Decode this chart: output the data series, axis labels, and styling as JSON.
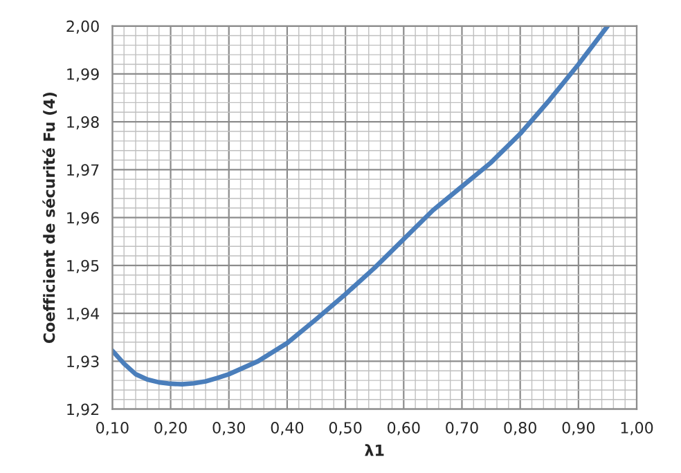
{
  "chart_data": {
    "type": "line",
    "xlabel": "λ1",
    "ylabel": "Coefficient de sécurité Fu (4)",
    "x": [
      0.1,
      0.12,
      0.14,
      0.16,
      0.18,
      0.2,
      0.22,
      0.24,
      0.26,
      0.28,
      0.3,
      0.35,
      0.4,
      0.45,
      0.5,
      0.55,
      0.6,
      0.65,
      0.67,
      0.7,
      0.75,
      0.8,
      0.85,
      0.9,
      0.95
    ],
    "series": [
      {
        "color": "#4a7ebb",
        "values": [
          1.9322,
          1.9295,
          1.9273,
          1.9262,
          1.9256,
          1.9253,
          1.9252,
          1.9254,
          1.9258,
          1.9265,
          1.9273,
          1.93,
          1.9338,
          1.9388,
          1.944,
          1.9495,
          1.9555,
          1.9615,
          1.9635,
          1.9665,
          1.9715,
          1.9775,
          1.9845,
          1.992,
          2.0
        ]
      }
    ],
    "xlim": [
      0.1,
      1.0
    ],
    "ylim": [
      1.92,
      2.0
    ],
    "xticks": [
      {
        "value": 0.1,
        "label": "0,10"
      },
      {
        "value": 0.2,
        "label": "0,20"
      },
      {
        "value": 0.3,
        "label": "0,30"
      },
      {
        "value": 0.4,
        "label": "0,40"
      },
      {
        "value": 0.5,
        "label": "0,50"
      },
      {
        "value": 0.6,
        "label": "0,60"
      },
      {
        "value": 0.7,
        "label": "0,70"
      },
      {
        "value": 0.8,
        "label": "0,80"
      },
      {
        "value": 0.9,
        "label": "0,90"
      },
      {
        "value": 1.0,
        "label": "1,00"
      }
    ],
    "yticks": [
      {
        "value": 1.92,
        "label": "1,92"
      },
      {
        "value": 1.93,
        "label": "1,93"
      },
      {
        "value": 1.94,
        "label": "1,94"
      },
      {
        "value": 1.95,
        "label": "1,95"
      },
      {
        "value": 1.96,
        "label": "1,96"
      },
      {
        "value": 1.97,
        "label": "1,97"
      },
      {
        "value": 1.98,
        "label": "1,98"
      },
      {
        "value": 1.99,
        "label": "1,99"
      },
      {
        "value": 2.0,
        "label": "2,00"
      }
    ],
    "grid": true,
    "marker": "none",
    "line_style": "solid"
  }
}
